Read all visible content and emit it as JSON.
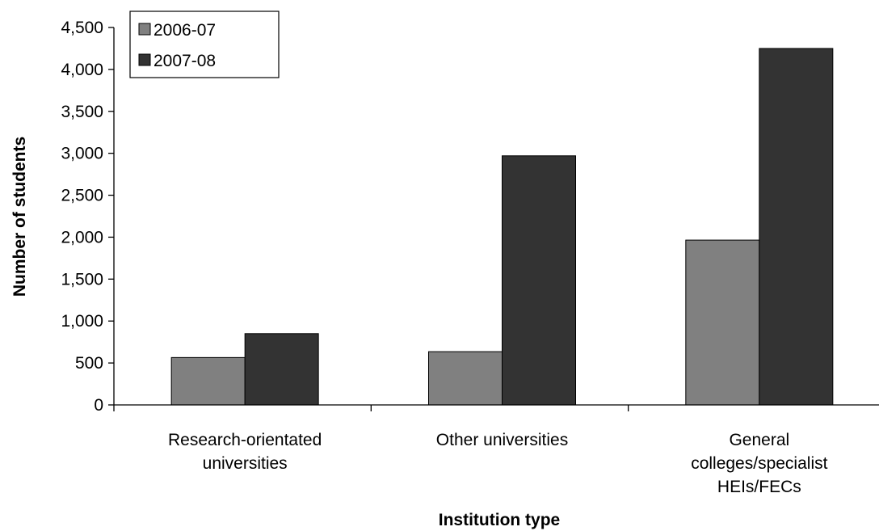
{
  "chart_data": {
    "type": "bar",
    "title": "",
    "xlabel": "Institution type",
    "ylabel": "Number of students",
    "categories": [
      [
        "Research-orientated",
        "universities"
      ],
      [
        "Other universities"
      ],
      [
        "General",
        "colleges/specialist",
        "HEIs/FECs"
      ]
    ],
    "series": [
      {
        "name": "2006-07",
        "values": [
          565,
          635,
          1965
        ],
        "color": "#808080"
      },
      {
        "name": "2007-08",
        "values": [
          850,
          2970,
          4250
        ],
        "color": "#333333"
      }
    ],
    "ylim": [
      0,
      4500
    ],
    "yticks": [
      0,
      500,
      1000,
      1500,
      2000,
      2500,
      3000,
      3500,
      4000,
      4500
    ],
    "ytick_labels": [
      "0",
      "500",
      "1,000",
      "1,500",
      "2,000",
      "2,500",
      "3,000",
      "3,500",
      "4,000",
      "4,500"
    ],
    "legend_position": "top-left",
    "grid": false
  }
}
